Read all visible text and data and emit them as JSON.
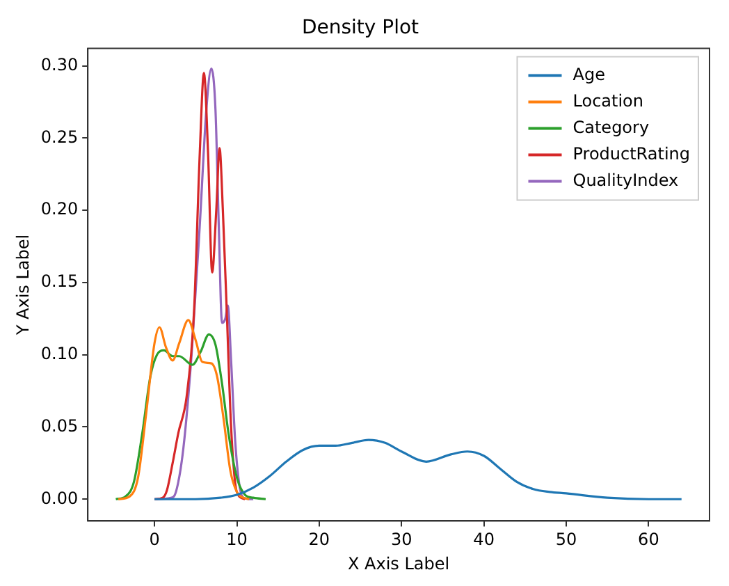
{
  "chart_data": {
    "type": "line",
    "title": "Density Plot",
    "xlabel": "X Axis Label",
    "ylabel": "Y Axis Label",
    "xlim": [
      -8.1,
      67.4
    ],
    "ylim": [
      -0.015,
      0.312
    ],
    "xticks": [
      0,
      10,
      20,
      30,
      40,
      50,
      60
    ],
    "yticks": [
      {
        "value": 0,
        "label": "0.00"
      },
      0.05,
      {
        "value": 0.1,
        "label": "0.10"
      },
      0.15,
      {
        "value": 0.2,
        "label": "0.20"
      },
      0.25,
      {
        "value": 0.3,
        "label": "0.30"
      }
    ],
    "grid": false,
    "legend": "top right",
    "marker": "none",
    "line_style": "solid",
    "series": [
      {
        "name": "Age",
        "color": "#1f77b4",
        "x": [
          0,
          5,
          8,
          10,
          12,
          14,
          16,
          18,
          20,
          22,
          24,
          26,
          28,
          30,
          33,
          36,
          38,
          40,
          42,
          44,
          46,
          48,
          50,
          55,
          60,
          64
        ],
        "values": [
          0,
          0,
          0.001,
          0.003,
          0.008,
          0.016,
          0.026,
          0.034,
          0.037,
          0.037,
          0.039,
          0.041,
          0.039,
          0.033,
          0.026,
          0.031,
          0.033,
          0.03,
          0.021,
          0.012,
          0.007,
          0.005,
          0.004,
          0.001,
          0,
          0
        ]
      },
      {
        "name": "Location",
        "color": "#ff7f0e",
        "x": [
          -4.4,
          -3,
          -2,
          -1,
          0,
          0.6,
          1.4,
          2.2,
          3,
          4.1,
          5,
          5.8,
          6.9,
          7.6,
          8.4,
          9.2,
          10,
          10.8,
          11.5
        ],
        "values": [
          0,
          0.002,
          0.015,
          0.06,
          0.108,
          0.119,
          0.105,
          0.096,
          0.108,
          0.124,
          0.11,
          0.095,
          0.094,
          0.085,
          0.055,
          0.02,
          0.005,
          0.001,
          0
        ]
      },
      {
        "name": "Category",
        "color": "#2ca02c",
        "x": [
          -4.7,
          -3.5,
          -2.5,
          -1.5,
          -0.5,
          0.3,
          1.15,
          2.2,
          3,
          4.6,
          5.6,
          6.6,
          7.4,
          8.2,
          9,
          10,
          11,
          12,
          13.5
        ],
        "values": [
          0,
          0.002,
          0.012,
          0.045,
          0.085,
          0.1,
          0.103,
          0.099,
          0.099,
          0.093,
          0.102,
          0.114,
          0.107,
          0.08,
          0.045,
          0.015,
          0.003,
          0.001,
          0
        ]
      },
      {
        "name": "ProductRating",
        "color": "#d62728",
        "x": [
          0,
          1,
          1.5,
          2.2,
          2.9,
          3.9,
          4.8,
          5.5,
          6,
          6.5,
          7,
          7.5,
          7.9,
          8.3,
          8.8,
          9.3,
          10,
          11
        ],
        "values": [
          0,
          0.001,
          0.006,
          0.025,
          0.046,
          0.071,
          0.13,
          0.24,
          0.295,
          0.24,
          0.157,
          0.2,
          0.243,
          0.2,
          0.126,
          0.05,
          0.005,
          0
        ]
      },
      {
        "name": "QualityIndex",
        "color": "#9467bd",
        "x": [
          0,
          2,
          2.6,
          3.5,
          4.5,
          5.5,
          6.3,
          6.9,
          7.4,
          7.8,
          8.2,
          8.6,
          8.9,
          9.3,
          9.8,
          10.3,
          10.8,
          12
        ],
        "values": [
          0,
          0.001,
          0.005,
          0.035,
          0.1,
          0.19,
          0.27,
          0.298,
          0.27,
          0.19,
          0.122,
          0.125,
          0.134,
          0.096,
          0.04,
          0.01,
          0.001,
          0
        ]
      }
    ]
  }
}
